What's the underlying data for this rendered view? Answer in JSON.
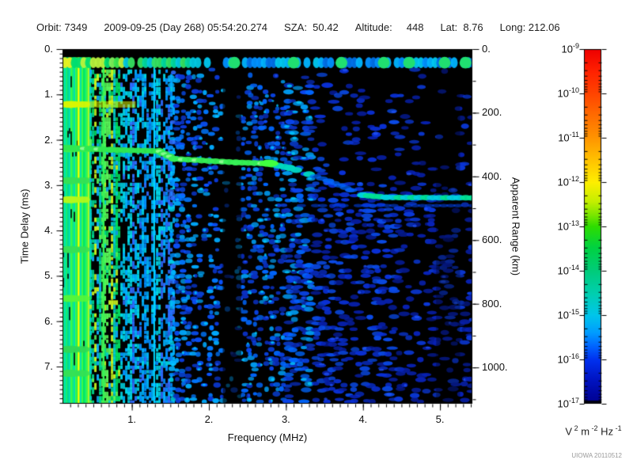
{
  "header": {
    "orbit": "Orbit: 7349",
    "datetime": "2009-09-25 (Day 268) 05:54:20.274",
    "sza": "SZA:  50.42",
    "altitude": "Altitude:     448",
    "lat": "Lat:  8.76",
    "long": "Long: 212.06"
  },
  "watermark": "UIOWA 20110512",
  "chart_data": {
    "type": "heatmap",
    "subtype": "radar-sounder-ionogram",
    "xlabel": "Frequency (MHz)",
    "ylabel_left": "Time Delay (ms)",
    "ylabel_right": "Apparent Range (km)",
    "xlim": [
      0.1,
      5.42
    ],
    "x_ticks": [
      1,
      2,
      3,
      4,
      5
    ],
    "x_tick_labels": [
      "1.",
      "2.",
      "3.",
      "4.",
      "5."
    ],
    "x_minor_step": 0.1,
    "ylim": [
      0,
      7.82
    ],
    "y_ticks": [
      0,
      1,
      2,
      3,
      4,
      5,
      6,
      7
    ],
    "y_tick_labels": [
      "0.",
      "1.",
      "2.",
      "3.",
      "4.",
      "5.",
      "6.",
      "7."
    ],
    "y_minor_step": 0.1,
    "right_lim": [
      0,
      1114
    ],
    "right_ticks": [
      0,
      200,
      400,
      600,
      800,
      1000
    ],
    "right_tick_labels": [
      "0.",
      "200.",
      "400.",
      "600.",
      "800.",
      "1000."
    ],
    "right_minor_step": 100,
    "grid": false,
    "legend_position": "none",
    "colorbar": {
      "scale": "log",
      "exponents": [
        -9,
        -10,
        -11,
        -12,
        -13,
        -14,
        -15,
        -16,
        -17
      ],
      "unit_parts": [
        [
          "V",
          "2"
        ],
        [
          "m",
          "-2"
        ],
        [
          "Hz",
          "-1"
        ]
      ],
      "gradient_stops": [
        [
          0.0,
          "#ee0000"
        ],
        [
          0.06,
          "#ff2000"
        ],
        [
          0.125,
          "#ff4400"
        ],
        [
          0.19,
          "#ff6e00"
        ],
        [
          0.25,
          "#ff9400"
        ],
        [
          0.31,
          "#ffc000"
        ],
        [
          0.375,
          "#ffee00"
        ],
        [
          0.43,
          "#c4ef00"
        ],
        [
          0.47,
          "#76e600"
        ],
        [
          0.5,
          "#2edd00"
        ],
        [
          0.56,
          "#00d242"
        ],
        [
          0.625,
          "#00cc7a"
        ],
        [
          0.69,
          "#00cfb0"
        ],
        [
          0.75,
          "#00c6ea"
        ],
        [
          0.8,
          "#009cff"
        ],
        [
          0.84,
          "#0062ff"
        ],
        [
          0.875,
          "#0032f0"
        ],
        [
          0.93,
          "#0015c4"
        ],
        [
          0.97,
          "#0008a4"
        ],
        [
          1.0,
          "#000090"
        ]
      ]
    },
    "features": {
      "transmit_pulse_band": {
        "delay_range": [
          0.18,
          0.42
        ],
        "freq_range": [
          0.1,
          5.42
        ],
        "green_blob_freqs": [
          2.33,
          3.1,
          3.72,
          4.27,
          4.6,
          5.06,
          5.33
        ]
      },
      "top_black_row": {
        "delay_range": [
          0,
          0.175
        ]
      },
      "solid_plasma_region": {
        "freq_range": [
          0.1,
          0.45
        ]
      },
      "vertical_lines": [
        {
          "freq": 0.295,
          "color": "#eaff00",
          "width": 2.5
        },
        {
          "freq": 0.62,
          "color": "#35f556",
          "width": 2.5
        },
        {
          "freq": 1.28,
          "color": "#00d8ff",
          "width": 2.0
        }
      ],
      "dark_bands": [
        {
          "freq_range": [
            2.18,
            2.42
          ],
          "alpha": 0.6
        },
        {
          "freq_range": [
            4.95,
            5.26
          ],
          "alpha": 0.32
        }
      ],
      "echo_trace": {
        "points": [
          [
            0.1,
            2.17
          ],
          [
            0.72,
            2.22
          ],
          [
            1.35,
            2.25
          ],
          [
            1.55,
            2.42
          ],
          [
            2.35,
            2.5
          ],
          [
            2.75,
            2.52
          ],
          [
            3.05,
            2.62
          ],
          [
            3.55,
            2.9
          ],
          [
            4.0,
            3.22
          ],
          [
            4.3,
            3.27
          ],
          [
            5.42,
            3.28
          ]
        ],
        "bright_blob": [
          2.78,
          2.52
        ]
      },
      "faint_lower_line": {
        "delay": 3.45,
        "freq_range": [
          3.2,
          5.42
        ],
        "color": "#0040dd"
      },
      "left_edge_blobs": [
        {
          "delay": 1.22,
          "freq_span": 0.95,
          "color": "#ddf500"
        },
        {
          "delay": 2.2,
          "freq_span": 0.42,
          "color": "#3cef50"
        },
        {
          "delay": 2.9,
          "freq_span": 0.35,
          "color": "#35e055"
        },
        {
          "delay": 3.32,
          "freq_span": 0.35,
          "color": "#b8f818"
        },
        {
          "delay": 4.42,
          "freq_span": 0.3,
          "color": "#35e055"
        },
        {
          "delay": 5.5,
          "freq_span": 0.32,
          "color": "#55f53a"
        },
        {
          "delay": 6.62,
          "freq_span": 0.3,
          "color": "#2fd855"
        },
        {
          "delay": 7.15,
          "freq_span": 0.3,
          "color": "#35e055"
        }
      ],
      "noise": {
        "seed": 1337,
        "density_profile": [
          [
            0.45,
            0.95
          ],
          [
            0.85,
            0.82
          ],
          [
            1.3,
            0.72
          ],
          [
            1.8,
            0.6
          ],
          [
            2.05,
            0.45
          ],
          [
            2.18,
            0.1
          ],
          [
            2.3,
            0.06
          ],
          [
            2.42,
            0.52
          ],
          [
            2.8,
            0.55
          ],
          [
            3.2,
            0.5
          ],
          [
            3.6,
            0.44
          ],
          [
            4.2,
            0.38
          ],
          [
            4.7,
            0.3
          ],
          [
            5.0,
            0.26
          ],
          [
            5.42,
            0.3
          ]
        ],
        "palettes": {
          "solid": [
            "#00e663",
            "#16ef6f",
            "#00dc8e",
            "#00e0b0",
            "#3cf947",
            "#a8f628",
            "#00cfe8"
          ],
          "green": [
            "#00e060",
            "#00d890",
            "#59f759",
            "#00cfd0",
            "#c8f520",
            "#0fb0ff"
          ],
          "cyan": [
            "#00b4ff",
            "#0090ff",
            "#00d8e8",
            "#2e6bff"
          ],
          "blue1": [
            "#0a52ff",
            "#0077ff",
            "#00aaff",
            "#0a39d8"
          ],
          "blue2": [
            "#0a46f0",
            "#0066ff",
            "#0099ee",
            "#0a2fc0"
          ],
          "blue3": [
            "#0930d6",
            "#0a4ae8",
            "#071fa8"
          ],
          "blue4": [
            "#0822b8",
            "#0a38d8",
            "#051a90"
          ]
        }
      }
    }
  }
}
